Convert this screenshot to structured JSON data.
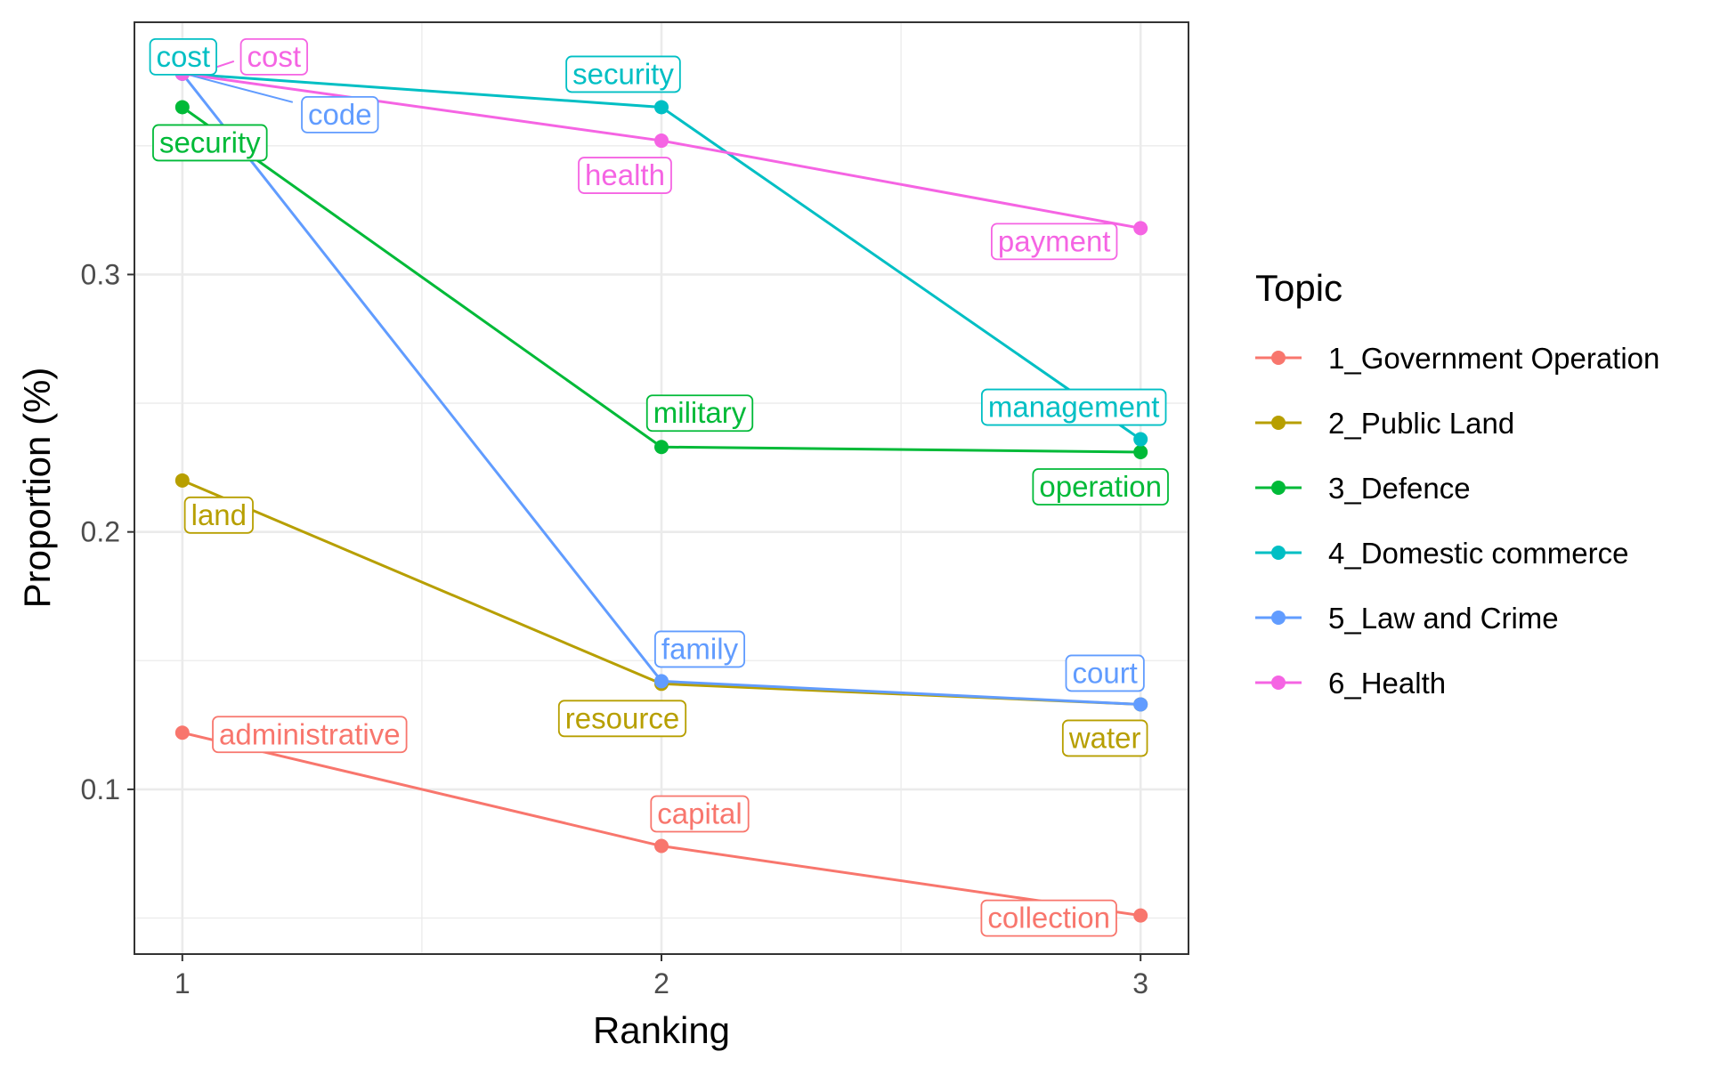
{
  "chart_data": {
    "type": "line",
    "xlabel": "Ranking",
    "ylabel": "Proportion (%)",
    "x_ticks": [
      "1",
      "2",
      "3"
    ],
    "y_ticks": [
      "0.1",
      "0.2",
      "0.3"
    ],
    "xlim": [
      0.9,
      3.1
    ],
    "ylim": [
      0.036,
      0.398
    ],
    "grid": true,
    "legend": {
      "title": "Topic",
      "position": "right"
    },
    "series": [
      {
        "name": "1_Government Operation",
        "color": "#F8766D",
        "x": [
          1,
          2,
          3
        ],
        "y": [
          0.122,
          0.078,
          0.051
        ],
        "labels": [
          "administrative",
          "capital",
          "collection"
        ]
      },
      {
        "name": "2_Public Land",
        "color": "#B79F00",
        "x": [
          1,
          2,
          3
        ],
        "y": [
          0.22,
          0.141,
          0.133
        ],
        "labels": [
          "land",
          "resource",
          "water"
        ]
      },
      {
        "name": "3_Defence",
        "color": "#00BA38",
        "x": [
          1,
          2,
          3
        ],
        "y": [
          0.365,
          0.233,
          0.231
        ],
        "labels": [
          "security",
          "military",
          "operation"
        ]
      },
      {
        "name": "4_Domestic commerce",
        "color": "#00BFC4",
        "x": [
          1,
          2,
          3
        ],
        "y": [
          0.378,
          0.365,
          0.236
        ],
        "labels": [
          "cost",
          "security",
          "management"
        ]
      },
      {
        "name": "5_Law and Crime",
        "color": "#619CFF",
        "x": [
          1,
          2,
          3
        ],
        "y": [
          0.378,
          0.142,
          0.133
        ],
        "labels": [
          "code",
          "family",
          "court"
        ]
      },
      {
        "name": "6_Health",
        "color": "#F564E3",
        "x": [
          1,
          2,
          3
        ],
        "y": [
          0.378,
          0.352,
          0.318
        ],
        "labels": [
          "cost",
          "health",
          "payment"
        ]
      }
    ]
  }
}
